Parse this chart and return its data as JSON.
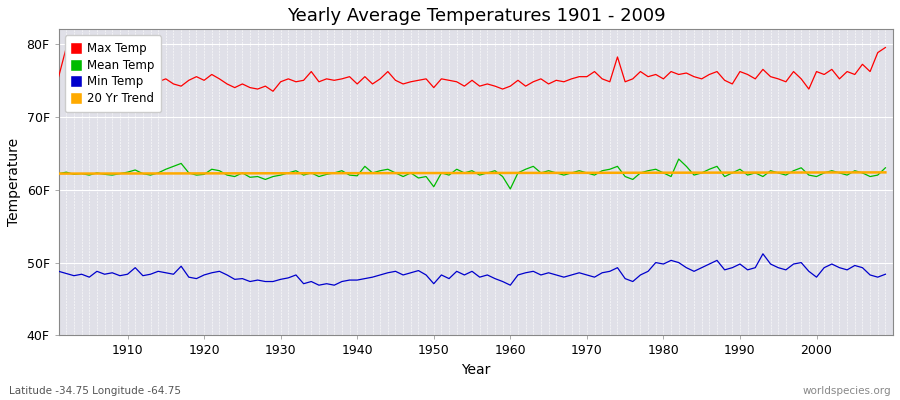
{
  "title": "Yearly Average Temperatures 1901 - 2009",
  "xlabel": "Year",
  "ylabel": "Temperature",
  "bottom_left": "Latitude -34.75 Longitude -64.75",
  "bottom_right": "worldspecies.org",
  "years": [
    1901,
    1902,
    1903,
    1904,
    1905,
    1906,
    1907,
    1908,
    1909,
    1910,
    1911,
    1912,
    1913,
    1914,
    1915,
    1916,
    1917,
    1918,
    1919,
    1920,
    1921,
    1922,
    1923,
    1924,
    1925,
    1926,
    1927,
    1928,
    1929,
    1930,
    1931,
    1932,
    1933,
    1934,
    1935,
    1936,
    1937,
    1938,
    1939,
    1940,
    1941,
    1942,
    1943,
    1944,
    1945,
    1946,
    1947,
    1948,
    1949,
    1950,
    1951,
    1952,
    1953,
    1954,
    1955,
    1956,
    1957,
    1958,
    1959,
    1960,
    1961,
    1962,
    1963,
    1964,
    1965,
    1966,
    1967,
    1968,
    1969,
    1970,
    1971,
    1972,
    1973,
    1974,
    1975,
    1976,
    1977,
    1978,
    1979,
    1980,
    1981,
    1982,
    1983,
    1984,
    1985,
    1986,
    1987,
    1988,
    1989,
    1990,
    1991,
    1992,
    1993,
    1994,
    1995,
    1996,
    1997,
    1998,
    1999,
    2000,
    2001,
    2002,
    2003,
    2004,
    2005,
    2006,
    2007,
    2008,
    2009
  ],
  "max_temp": [
    75.5,
    79.5,
    77.0,
    76.5,
    75.5,
    75.2,
    75.0,
    74.8,
    75.0,
    75.5,
    76.0,
    75.5,
    75.0,
    74.8,
    75.2,
    74.5,
    74.2,
    75.0,
    75.5,
    75.0,
    75.8,
    75.2,
    74.5,
    74.0,
    74.5,
    74.0,
    73.8,
    74.2,
    73.5,
    74.8,
    75.2,
    74.8,
    75.0,
    76.2,
    74.8,
    75.2,
    75.0,
    75.2,
    75.5,
    74.5,
    75.5,
    74.5,
    75.2,
    76.2,
    75.0,
    74.5,
    74.8,
    75.0,
    75.2,
    74.0,
    75.2,
    75.0,
    74.8,
    74.2,
    75.0,
    74.2,
    74.5,
    74.2,
    73.8,
    74.2,
    75.0,
    74.2,
    74.8,
    75.2,
    74.5,
    75.0,
    74.8,
    75.2,
    75.5,
    75.5,
    76.2,
    75.2,
    74.8,
    78.2,
    74.8,
    75.2,
    76.2,
    75.5,
    75.8,
    75.2,
    76.2,
    75.8,
    76.0,
    75.5,
    75.2,
    75.8,
    76.2,
    75.0,
    74.5,
    76.2,
    75.8,
    75.2,
    76.5,
    75.5,
    75.2,
    74.8,
    76.2,
    75.2,
    73.8,
    76.2,
    75.8,
    76.5,
    75.2,
    76.2,
    75.8,
    77.2,
    76.2,
    78.8,
    79.5
  ],
  "mean_temp": [
    62.2,
    62.4,
    62.1,
    62.2,
    62.0,
    62.3,
    62.1,
    62.0,
    62.2,
    62.4,
    62.7,
    62.2,
    62.0,
    62.3,
    62.8,
    63.2,
    63.6,
    62.3,
    62.0,
    62.1,
    62.8,
    62.6,
    62.0,
    61.8,
    62.3,
    61.7,
    61.8,
    61.4,
    61.8,
    62.0,
    62.3,
    62.6,
    62.0,
    62.3,
    61.8,
    62.1,
    62.3,
    62.6,
    62.0,
    61.9,
    63.2,
    62.3,
    62.6,
    62.8,
    62.3,
    61.8,
    62.3,
    61.6,
    61.8,
    60.4,
    62.3,
    62.0,
    62.8,
    62.3,
    62.6,
    62.0,
    62.3,
    62.6,
    61.8,
    60.1,
    62.3,
    62.8,
    63.2,
    62.3,
    62.6,
    62.3,
    62.0,
    62.3,
    62.6,
    62.3,
    62.0,
    62.6,
    62.8,
    63.2,
    61.8,
    61.4,
    62.3,
    62.6,
    62.8,
    62.3,
    61.8,
    64.2,
    63.2,
    62.0,
    62.3,
    62.8,
    63.2,
    61.8,
    62.3,
    62.8,
    62.0,
    62.3,
    61.8,
    62.6,
    62.3,
    62.0,
    62.6,
    63.0,
    62.0,
    61.8,
    62.3,
    62.6,
    62.3,
    62.0,
    62.6,
    62.3,
    61.8,
    62.0,
    63.0
  ],
  "min_temp": [
    48.8,
    48.5,
    48.2,
    48.4,
    48.0,
    48.8,
    48.4,
    48.6,
    48.2,
    48.4,
    49.3,
    48.2,
    48.4,
    48.8,
    48.6,
    48.4,
    49.5,
    48.0,
    47.8,
    48.3,
    48.6,
    48.8,
    48.3,
    47.7,
    47.8,
    47.4,
    47.6,
    47.4,
    47.4,
    47.7,
    47.9,
    48.3,
    47.1,
    47.4,
    46.9,
    47.1,
    46.9,
    47.4,
    47.6,
    47.6,
    47.8,
    48.0,
    48.3,
    48.6,
    48.8,
    48.3,
    48.6,
    48.9,
    48.3,
    47.1,
    48.3,
    47.8,
    48.8,
    48.3,
    48.8,
    48.0,
    48.3,
    47.8,
    47.4,
    46.9,
    48.3,
    48.6,
    48.8,
    48.3,
    48.6,
    48.3,
    48.0,
    48.3,
    48.6,
    48.3,
    48.0,
    48.6,
    48.8,
    49.3,
    47.8,
    47.4,
    48.3,
    48.8,
    50.0,
    49.8,
    50.3,
    50.0,
    49.3,
    48.8,
    49.3,
    49.8,
    50.3,
    49.0,
    49.3,
    49.8,
    49.0,
    49.3,
    51.2,
    49.8,
    49.3,
    49.0,
    49.8,
    50.0,
    48.8,
    48.0,
    49.3,
    49.8,
    49.3,
    49.0,
    49.6,
    49.3,
    48.3,
    48.0,
    48.4
  ],
  "bg_color": "#ffffff",
  "plot_bg_color": "#e0e0e8",
  "max_color": "#ff0000",
  "mean_color": "#00bb00",
  "min_color": "#0000cc",
  "trend_color": "#ffaa00",
  "grid_color": "#ffffff",
  "ylim": [
    40,
    82
  ],
  "yticks": [
    40,
    50,
    60,
    70,
    80
  ],
  "ytick_labels": [
    "40F",
    "50F",
    "60F",
    "70F",
    "80F"
  ],
  "xlim": [
    1901,
    2010
  ],
  "xtick_positions": [
    1910,
    1920,
    1930,
    1940,
    1950,
    1960,
    1970,
    1980,
    1990,
    2000
  ]
}
